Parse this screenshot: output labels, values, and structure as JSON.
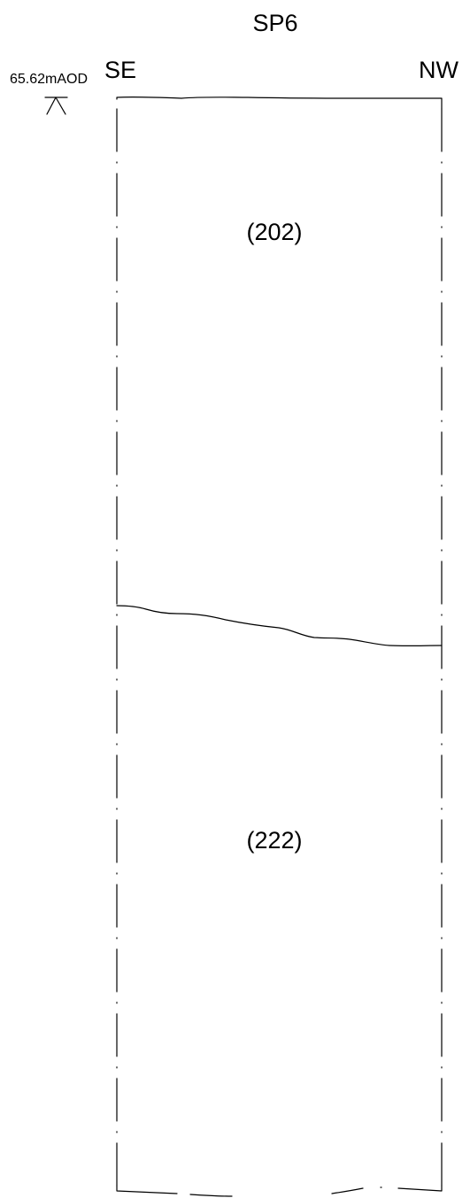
{
  "drawing": {
    "title": "SP6",
    "orientation": {
      "left": "SE",
      "right": "NW"
    },
    "datum": {
      "level": "65.62mAOD",
      "symbol": "datum-level-triangle"
    },
    "contexts": [
      {
        "id": "(202)"
      },
      {
        "id": "(222)"
      }
    ],
    "line_color": "#000000",
    "background": "#ffffff"
  }
}
